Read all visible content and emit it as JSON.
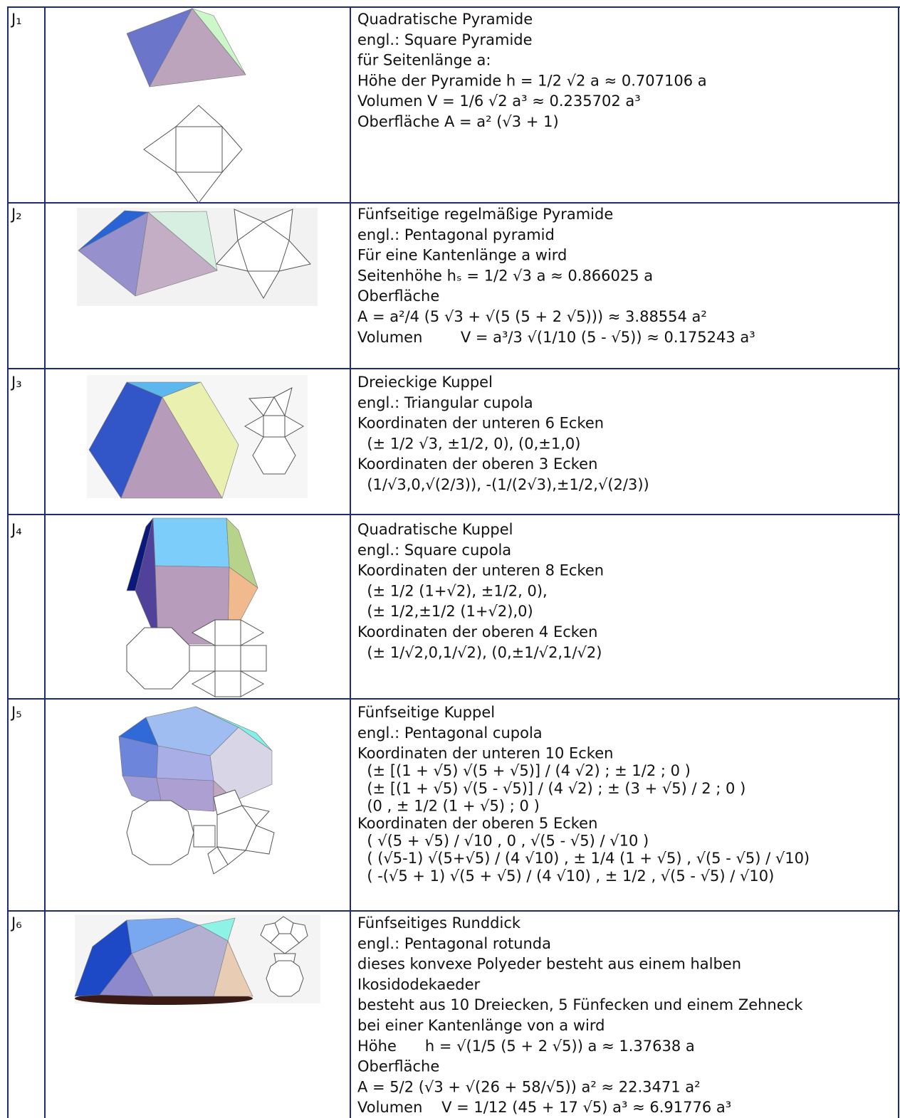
{
  "table": {
    "rows": [
      {
        "label": "J₁",
        "lines": [
          "Quadratische Pyramide",
          "engl.: Square Pyramide",
          "für Seitenlänge a:",
          "Höhe der Pyramide h = 1/2 √2 a ≈ 0.707106 a",
          "Volumen V = 1/6 √2 a³ ≈ 0.235702 a³",
          "Oberfläche A = a² (√3 + 1)"
        ]
      },
      {
        "label": "J₂",
        "lines": [
          "Fünfseitige regelmäßige Pyramide",
          "engl.: Pentagonal pyramid",
          "Für eine Kantenlänge a wird",
          "Seitenhöhe hₛ = 1/2 √3 a ≈ 0.866025 a",
          "Oberfläche",
          "A = a²/4 (5 √3 + √(5 (5 + 2 √5))) ≈ 3.88554 a²",
          "Volumen        V = a³/3 √(1/10 (5 - √5)) ≈ 0.175243 a³"
        ]
      },
      {
        "label": "J₃",
        "lines": [
          "Dreieckige Kuppel",
          "engl.: Triangular cupola",
          "Koordinaten der unteren 6 Ecken",
          "  (± 1/2 √3, ±1/2, 0), (0,±1,0)",
          "Koordinaten der oberen 3 Ecken",
          "  (1/√3,0,√(2/3)), -(1/(2√3),±1/2,√(2/3))"
        ]
      },
      {
        "label": "J₄",
        "lines": [
          "Quadratische Kuppel",
          "engl.: Square cupola",
          "Koordinaten der unteren 8 Ecken",
          "  (± 1/2 (1+√2), ±1/2, 0),",
          "  (± 1/2,±1/2 (1+√2),0)",
          "Koordinaten der oberen 4 Ecken",
          "  (± 1/√2,0,1/√2), (0,±1/√2,1/√2)"
        ]
      },
      {
        "label": "J₅",
        "lines": [
          "Fünfseitige Kuppel",
          "engl.: Pentagonal cupola",
          "Koordinaten der unteren 10 Ecken",
          "  (± [(1 + √5) √(5 + √5)] / (4 √2) ; ± 1/2 ; 0 )",
          "  (± [(1 + √5) √(5 - √5)] / (4 √2) ; ± (3 + √5) / 2 ; 0 )",
          "  (0 , ± 1/2 (1 + √5) ; 0 )",
          "Koordinaten der oberen 5 Ecken",
          "  ( √(5 + √5) / √10 , 0 , √(5 - √5) / √10 )",
          "  ( (√5-1) √(5+√5) / (4 √10) , ± 1/4 (1 + √5) , √(5 - √5) / √10)",
          "  ( -(√5 + 1) √(5 + √5) / (4 √10) , ± 1/2 , √(5 - √5) / √10)"
        ]
      },
      {
        "label": "J₆",
        "lines": [
          "Fünfseitiges Runddick",
          "engl.: Pentagonal rotunda",
          "dieses konvexe Polyeder besteht aus einem halben",
          "Ikosidodekaeder",
          "besteht aus 10 Dreiecken, 5 Fünfecken und einem Zehneck",
          "bei einer Kantenlänge von a wird",
          "Höhe      h = √(1/5 (5 + 2 √5)) a ≈ 1.37638 a",
          "Oberfläche",
          "A = 5/2 (√3 + √(26 + 58/√5)) a² ≈ 22.3471 a²",
          "Volumen    V = 1/12 (45 + 17 √5) a³ ≈ 6.91776 a³"
        ]
      }
    ]
  }
}
